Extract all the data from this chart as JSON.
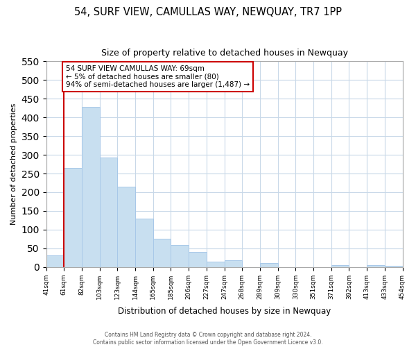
{
  "title": "54, SURF VIEW, CAMULLAS WAY, NEWQUAY, TR7 1PP",
  "subtitle": "Size of property relative to detached houses in Newquay",
  "xlabel": "Distribution of detached houses by size in Newquay",
  "ylabel": "Number of detached properties",
  "bar_values": [
    32,
    265,
    428,
    292,
    215,
    130,
    76,
    59,
    40,
    15,
    18,
    0,
    10,
    0,
    0,
    0,
    5,
    0,
    5,
    4
  ],
  "bin_labels": [
    "41sqm",
    "61sqm",
    "82sqm",
    "103sqm",
    "123sqm",
    "144sqm",
    "165sqm",
    "185sqm",
    "206sqm",
    "227sqm",
    "247sqm",
    "268sqm",
    "289sqm",
    "309sqm",
    "330sqm",
    "351sqm",
    "371sqm",
    "392sqm",
    "413sqm",
    "433sqm",
    "454sqm"
  ],
  "bar_color": "#c8dff0",
  "bar_edge_color": "#a8c8e8",
  "vline_color": "#cc0000",
  "ylim": [
    0,
    550
  ],
  "yticks": [
    0,
    50,
    100,
    150,
    200,
    250,
    300,
    350,
    400,
    450,
    500,
    550
  ],
  "annotation_title": "54 SURF VIEW CAMULLAS WAY: 69sqm",
  "annotation_line1": "← 5% of detached houses are smaller (80)",
  "annotation_line2": "94% of semi-detached houses are larger (1,487) →",
  "footer1": "Contains HM Land Registry data © Crown copyright and database right 2024.",
  "footer2": "Contains public sector information licensed under the Open Government Licence v3.0.",
  "background_color": "#ffffff",
  "grid_color": "#c8d8e8"
}
